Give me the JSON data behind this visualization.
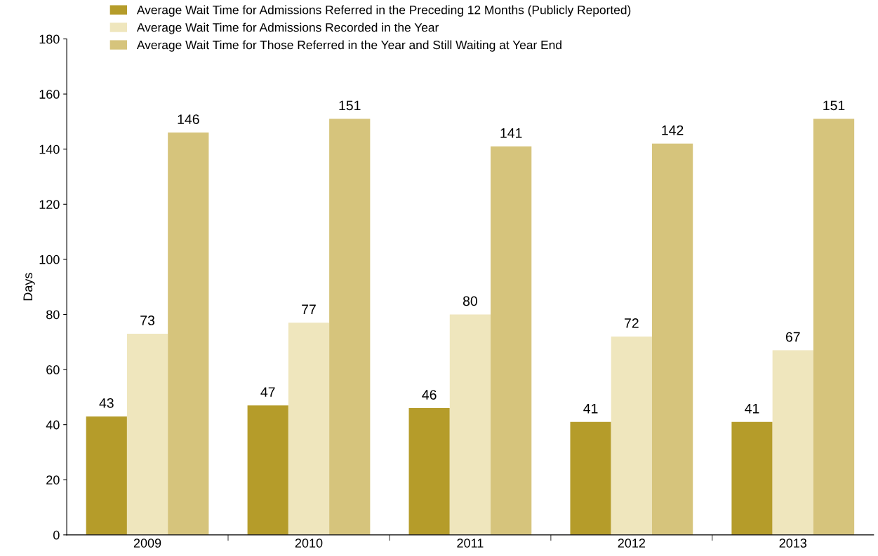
{
  "chart_data": {
    "type": "bar",
    "ylabel": "Days",
    "categories": [
      "2009",
      "2010",
      "2011",
      "2012",
      "2013"
    ],
    "series": [
      {
        "name": "Average Wait Time for Admissions Referred in the Preceding 12 Months (Publicly Reported)",
        "color": "#b59c2a",
        "values": [
          43,
          47,
          46,
          41,
          41
        ]
      },
      {
        "name": "Average Wait Time for Admissions Recorded in the Year",
        "color": "#efe6bd",
        "values": [
          73,
          77,
          80,
          72,
          67
        ]
      },
      {
        "name": "Average Wait Time for Those Referred in the Year and Still Waiting at Year End",
        "color": "#d6c47c",
        "values": [
          146,
          151,
          141,
          142,
          151
        ]
      }
    ],
    "ylim": [
      0,
      180
    ],
    "yticks": [
      0,
      20,
      40,
      60,
      80,
      100,
      120,
      140,
      160,
      180
    ],
    "grid": false,
    "legend": "top left",
    "data_labels": true
  }
}
